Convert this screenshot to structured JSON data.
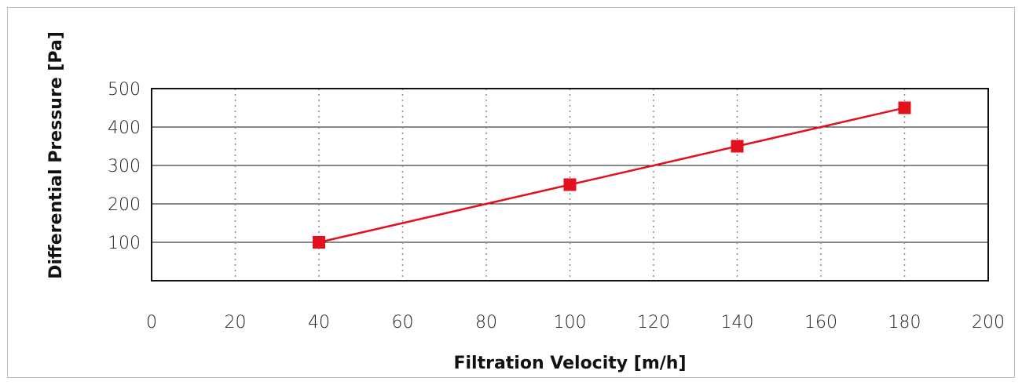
{
  "chart_data": {
    "type": "line",
    "title": "",
    "xlabel": "Filtration Velocity [m/h]",
    "ylabel": "Differential Pressure  [Pa]",
    "xlim": [
      0,
      200
    ],
    "ylim": [
      0,
      500
    ],
    "x_ticks": [
      0,
      20,
      40,
      60,
      80,
      100,
      120,
      140,
      160,
      180,
      200
    ],
    "y_ticks": [
      100,
      200,
      300,
      400,
      500
    ],
    "grid": {
      "x": "dotted",
      "y": "solid"
    },
    "legend": "none",
    "series": [
      {
        "color": "#e3101e",
        "marker": "square",
        "x": [
          40,
          100,
          140,
          180
        ],
        "y": [
          100,
          250,
          350,
          450
        ]
      }
    ]
  }
}
